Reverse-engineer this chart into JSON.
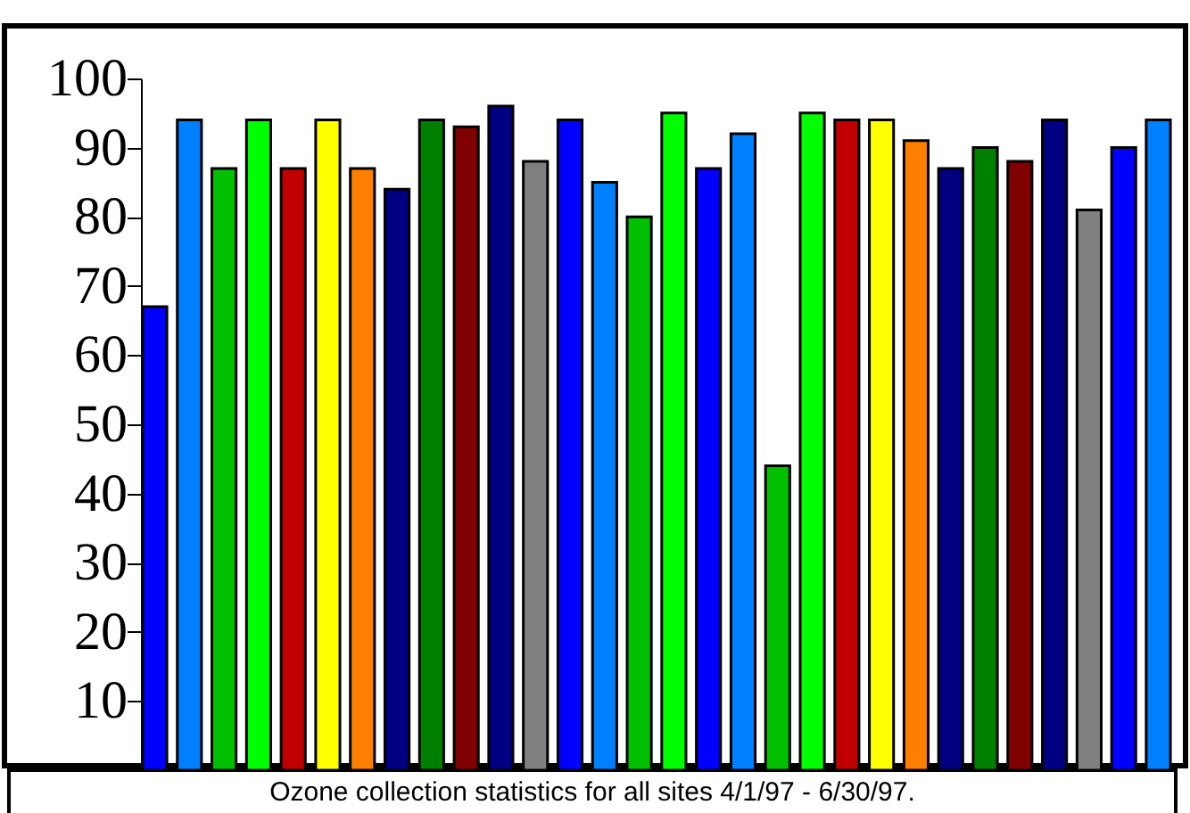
{
  "chart_data": {
    "type": "bar",
    "categories": [
      null,
      null,
      null,
      null,
      null,
      null,
      null,
      null,
      null,
      null,
      null,
      null,
      null,
      null,
      null,
      null,
      null,
      null,
      null,
      null,
      null,
      null,
      null,
      null,
      null,
      null,
      null,
      null,
      null,
      null
    ],
    "values": [
      67,
      94,
      87,
      94,
      87,
      94,
      87,
      84,
      94,
      93,
      96,
      88,
      94,
      85,
      80,
      95,
      87,
      92,
      44,
      95,
      94,
      94,
      91,
      87,
      90,
      88,
      94,
      81,
      90,
      94
    ],
    "colors": [
      "#0000ff",
      "#0080ff",
      "#00c000",
      "#00ff00",
      "#c00000",
      "#ffff00",
      "#ff8000",
      "#000080",
      "#008000",
      "#800000",
      "#000080",
      "#808080",
      "#0000ff",
      "#0080ff",
      "#00c000",
      "#00ff00",
      "#0000ff",
      "#0080ff",
      "#00c000",
      "#00ff00",
      "#c00000",
      "#ffff00",
      "#ff8000",
      "#000080",
      "#008000",
      "#800000",
      "#000080",
      "#808080",
      "#0000ff",
      "#0080ff"
    ],
    "ylim": [
      0,
      100
    ],
    "yticks": [
      10,
      20,
      30,
      40,
      50,
      60,
      70,
      80,
      90,
      100
    ],
    "grid": false,
    "annotations": [
      "Ozone collection statistics for all sites 4/1/97 - 6/30/97."
    ]
  }
}
